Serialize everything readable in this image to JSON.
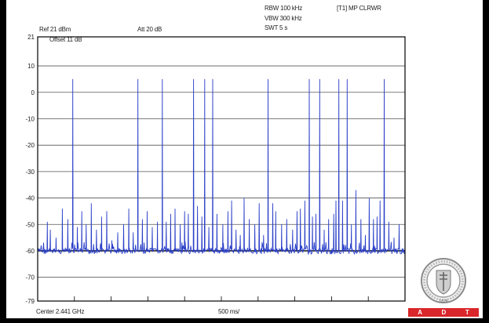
{
  "header": {
    "ref": "Ref 21 dBm",
    "att": "Att  20 dB",
    "rbw": "RBW 100 kHz",
    "vbw": "VBW 300 kHz",
    "swt": "SWT 5 s",
    "trace": "[T1] MP CLRWR"
  },
  "plot": {
    "offset": "Offset 11 dB",
    "center": "Center 2.441 GHz",
    "span": "500 ms/"
  },
  "badge": {
    "letters": [
      "A",
      "D",
      "T"
    ],
    "seal_text": "BUREAU VERITAS",
    "seal_year": "1828",
    "color": "#d9262a"
  },
  "chart_data": {
    "type": "line",
    "title": "",
    "xlabel": "",
    "ylabel": "",
    "y_tick_labels": [
      "21",
      "10",
      "0",
      "-10",
      "-20",
      "-30",
      "-40",
      "-50",
      "-60",
      "-70",
      "-79"
    ],
    "yticks": [
      21,
      10,
      0,
      -10,
      -20,
      -30,
      -40,
      -50,
      -60,
      -70,
      -79
    ],
    "ylim": [
      -79,
      21
    ],
    "xlim": [
      0,
      5000
    ],
    "x_unit": "ms",
    "threshold": -60,
    "noise_floor": -59,
    "trace_color": "#2a3fc8",
    "grid": true,
    "peaks": [
      {
        "x": 131,
        "y": -49
      },
      {
        "x": 172,
        "y": -52
      },
      {
        "x": 250,
        "y": -55
      },
      {
        "x": 336,
        "y": -44
      },
      {
        "x": 410,
        "y": -48
      },
      {
        "x": 478,
        "y": 5
      },
      {
        "x": 540,
        "y": -51
      },
      {
        "x": 600,
        "y": -45
      },
      {
        "x": 660,
        "y": -50
      },
      {
        "x": 730,
        "y": -42
      },
      {
        "x": 800,
        "y": -52
      },
      {
        "x": 870,
        "y": -47
      },
      {
        "x": 940,
        "y": -45
      },
      {
        "x": 1010,
        "y": -56
      },
      {
        "x": 1090,
        "y": -53
      },
      {
        "x": 1170,
        "y": -50
      },
      {
        "x": 1240,
        "y": -44
      },
      {
        "x": 1300,
        "y": -53
      },
      {
        "x": 1364,
        "y": 5
      },
      {
        "x": 1425,
        "y": -48
      },
      {
        "x": 1490,
        "y": -45
      },
      {
        "x": 1560,
        "y": -51
      },
      {
        "x": 1630,
        "y": -49
      },
      {
        "x": 1697,
        "y": 5
      },
      {
        "x": 1750,
        "y": -49
      },
      {
        "x": 1810,
        "y": -46
      },
      {
        "x": 1870,
        "y": -44
      },
      {
        "x": 1940,
        "y": -50
      },
      {
        "x": 2000,
        "y": -45
      },
      {
        "x": 2050,
        "y": -46
      },
      {
        "x": 2122,
        "y": 5
      },
      {
        "x": 2175,
        "y": -43
      },
      {
        "x": 2235,
        "y": -47
      },
      {
        "x": 2273,
        "y": 5
      },
      {
        "x": 2330,
        "y": -51
      },
      {
        "x": 2382,
        "y": 5
      },
      {
        "x": 2440,
        "y": -46
      },
      {
        "x": 2520,
        "y": -50
      },
      {
        "x": 2590,
        "y": -45
      },
      {
        "x": 2640,
        "y": -41
      },
      {
        "x": 2700,
        "y": -52
      },
      {
        "x": 2757,
        "y": -54
      },
      {
        "x": 2810,
        "y": -40
      },
      {
        "x": 2880,
        "y": -48
      },
      {
        "x": 2955,
        "y": -50
      },
      {
        "x": 3015,
        "y": -42
      },
      {
        "x": 3075,
        "y": -54
      },
      {
        "x": 3136,
        "y": 5
      },
      {
        "x": 3200,
        "y": -42
      },
      {
        "x": 3240,
        "y": -45
      },
      {
        "x": 3320,
        "y": -50
      },
      {
        "x": 3390,
        "y": -48
      },
      {
        "x": 3470,
        "y": -52
      },
      {
        "x": 3530,
        "y": -45
      },
      {
        "x": 3576,
        "y": -44
      },
      {
        "x": 3637,
        "y": -41
      },
      {
        "x": 3697,
        "y": 5
      },
      {
        "x": 3740,
        "y": -47
      },
      {
        "x": 3787,
        "y": -46
      },
      {
        "x": 3839,
        "y": 5
      },
      {
        "x": 3900,
        "y": -52
      },
      {
        "x": 3960,
        "y": -48
      },
      {
        "x": 4030,
        "y": -46
      },
      {
        "x": 4060,
        "y": -41
      },
      {
        "x": 4099,
        "y": 5
      },
      {
        "x": 4150,
        "y": -41
      },
      {
        "x": 4213,
        "y": 5
      },
      {
        "x": 4270,
        "y": -50
      },
      {
        "x": 4331,
        "y": -37
      },
      {
        "x": 4400,
        "y": -48
      },
      {
        "x": 4460,
        "y": -54
      },
      {
        "x": 4513,
        "y": -40
      },
      {
        "x": 4570,
        "y": -48
      },
      {
        "x": 4620,
        "y": -47
      },
      {
        "x": 4660,
        "y": -41
      },
      {
        "x": 4717,
        "y": 5
      },
      {
        "x": 4780,
        "y": -49
      },
      {
        "x": 4850,
        "y": -55
      },
      {
        "x": 4920,
        "y": -50
      }
    ]
  }
}
